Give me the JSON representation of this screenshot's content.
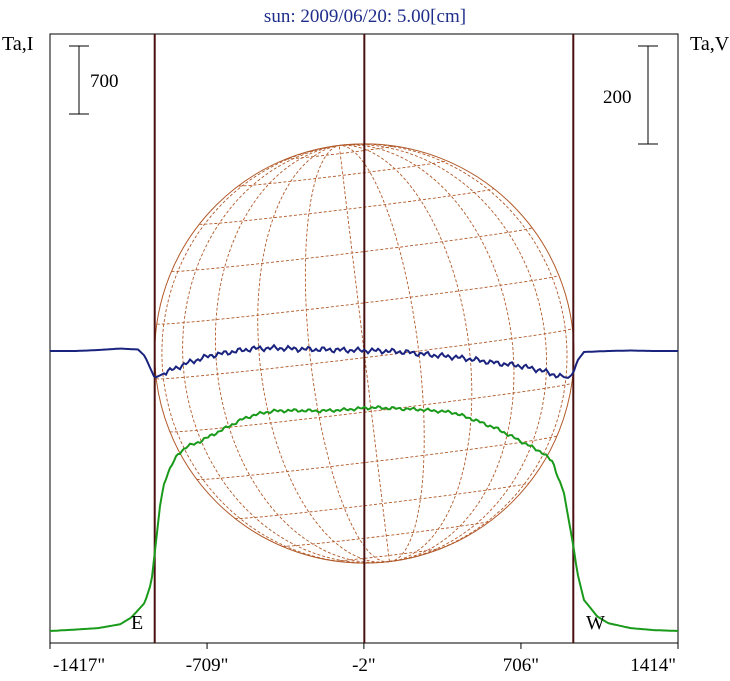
{
  "chart_data": {
    "type": "line",
    "title": "sun: 2009/06/20: 5.00[cm]",
    "left_axis_label": "Ta,I",
    "right_axis_label": "Ta,V",
    "left_scale_bar": "700",
    "right_scale_bar": "200",
    "east_label": "E",
    "west_label": "W",
    "xlim": [
      -1417,
      1414
    ],
    "x_ticks": [
      {
        "value": -1417,
        "label": "-1417\""
      },
      {
        "value": -709,
        "label": "-709\""
      },
      {
        "value": -2,
        "label": "-2\""
      },
      {
        "value": 706,
        "label": "706\""
      },
      {
        "value": 1414,
        "label": "1414\""
      }
    ],
    "limb_x": [
      -945,
      0,
      942
    ],
    "disk_radius": 945,
    "series": [
      {
        "name": "Ta,I",
        "color": "#1a9a1a",
        "x": [
          -1417,
          -1300,
          -1200,
          -1100,
          -1050,
          -990,
          -960,
          -945,
          -920,
          -900,
          -870,
          -840,
          -800,
          -760,
          -700,
          -650,
          -600,
          -550,
          -500,
          -450,
          -400,
          -300,
          -200,
          -100,
          -50,
          0,
          50,
          100,
          150,
          200,
          250,
          300,
          400,
          500,
          600,
          650,
          700,
          750,
          800,
          850,
          880,
          900,
          920,
          942,
          960,
          990,
          1050,
          1100,
          1200,
          1300,
          1414
        ],
        "y": [
          0,
          15,
          30,
          70,
          140,
          290,
          500,
          800,
          1310,
          1550,
          1700,
          1820,
          1900,
          1930,
          2000,
          2060,
          2120,
          2180,
          2220,
          2250,
          2265,
          2270,
          2265,
          2275,
          2285,
          2295,
          2300,
          2295,
          2290,
          2285,
          2280,
          2270,
          2250,
          2170,
          2080,
          2020,
          1960,
          1900,
          1840,
          1740,
          1540,
          1420,
          1160,
          880,
          600,
          320,
          150,
          80,
          30,
          10,
          0
        ]
      },
      {
        "name": "Ta,V",
        "color": "#1a237e",
        "x": [
          -1417,
          -1300,
          -1200,
          -1100,
          -1020,
          -990,
          -960,
          -945,
          -900,
          -850,
          -800,
          -700,
          -600,
          -500,
          -400,
          -300,
          -200,
          -100,
          0,
          100,
          200,
          300,
          400,
          500,
          600,
          700,
          800,
          880,
          920,
          942,
          960,
          990,
          1100,
          1200,
          1300,
          1414
        ],
        "y": [
          0,
          0,
          2,
          5,
          3,
          -10,
          -40,
          -55,
          -45,
          -35,
          -25,
          -10,
          -2,
          5,
          6,
          4,
          3,
          2,
          1,
          0,
          -3,
          -8,
          -12,
          -18,
          -25,
          -30,
          -40,
          -52,
          -55,
          -45,
          -20,
          -2,
          0,
          1,
          0,
          0
        ]
      }
    ],
    "left_scale_value": 700,
    "right_scale_value": 200
  },
  "colors": {
    "disk": "#b25a2a",
    "limb_lines": "#4a1010",
    "green_series": "#1a9a1a",
    "blue_series": "#1a237e"
  }
}
